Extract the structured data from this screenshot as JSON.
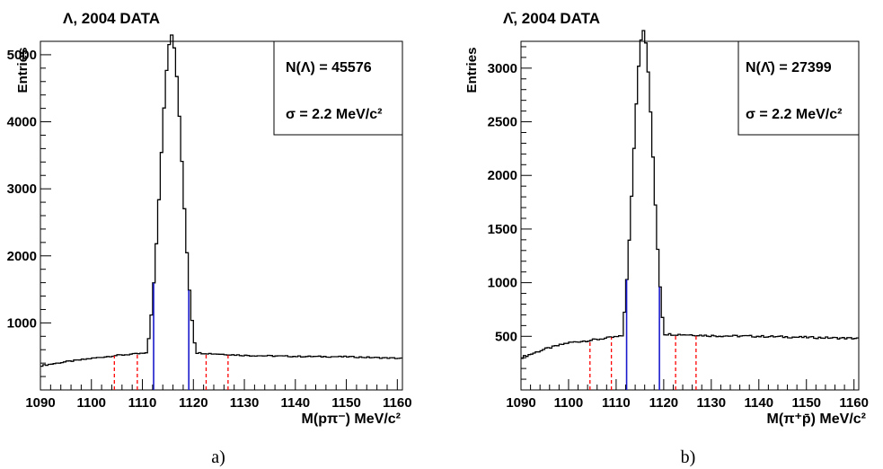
{
  "colors": {
    "histogram": "#000000",
    "signal_window": "#1a1acc",
    "sideband": "#ff0000"
  },
  "chart_data": [
    {
      "type": "step-histogram",
      "title": "Λ, 2004 DATA",
      "xlabel": "M(pπ⁻) MeV/c²",
      "ylabel": "Entries",
      "xlim": [
        1090,
        1161
      ],
      "ylim": [
        0,
        5200
      ],
      "xticks": [
        1090,
        1100,
        1110,
        1120,
        1130,
        1140,
        1150,
        1160
      ],
      "yticks": [
        1000,
        2000,
        3000,
        4000,
        5000
      ],
      "bin_width": 0.5,
      "peak": {
        "mean": 1115.7,
        "sigma": 2.2,
        "height": 4930
      },
      "background": [
        [
          1090,
          360
        ],
        [
          1095,
          420
        ],
        [
          1100,
          470
        ],
        [
          1105,
          515
        ],
        [
          1110,
          545
        ],
        [
          1120,
          555
        ],
        [
          1125,
          535
        ],
        [
          1130,
          515
        ],
        [
          1140,
          500
        ],
        [
          1150,
          495
        ],
        [
          1161,
          470
        ]
      ],
      "signal_window": [
        1112.2,
        1119.1
      ],
      "sideband_lines": [
        1104.5,
        1109.0,
        1122.5,
        1126.8
      ],
      "stats": [
        {
          "label": "N(Λ) = 45576"
        },
        {
          "label": "σ = 2.2 MeV/c²"
        }
      ],
      "panel_label": "a)"
    },
    {
      "type": "step-histogram",
      "title": "Λ̄, 2004 DATA",
      "xlabel": "M(π⁺p̄) MeV/c²",
      "ylabel": "Entries",
      "xlim": [
        1090,
        1161
      ],
      "ylim": [
        0,
        3250
      ],
      "xticks": [
        1090,
        1100,
        1110,
        1120,
        1130,
        1140,
        1150,
        1160
      ],
      "yticks": [
        500,
        1000,
        1500,
        2000,
        2500,
        3000
      ],
      "bin_width": 0.5,
      "peak": {
        "mean": 1115.7,
        "sigma": 2.2,
        "height": 3100
      },
      "background": [
        [
          1090,
          300
        ],
        [
          1095,
          380
        ],
        [
          1100,
          440
        ],
        [
          1105,
          465
        ],
        [
          1110,
          495
        ],
        [
          1120,
          520
        ],
        [
          1125,
          515
        ],
        [
          1130,
          505
        ],
        [
          1140,
          500
        ],
        [
          1150,
          490
        ],
        [
          1161,
          480
        ]
      ],
      "signal_window": [
        1112.2,
        1119.1
      ],
      "sideband_lines": [
        1104.5,
        1109.0,
        1122.5,
        1126.8
      ],
      "stats": [
        {
          "label": "N(Λ̄) = 27399"
        },
        {
          "label": "σ = 2.2 MeV/c²"
        }
      ],
      "panel_label": "b)"
    }
  ]
}
